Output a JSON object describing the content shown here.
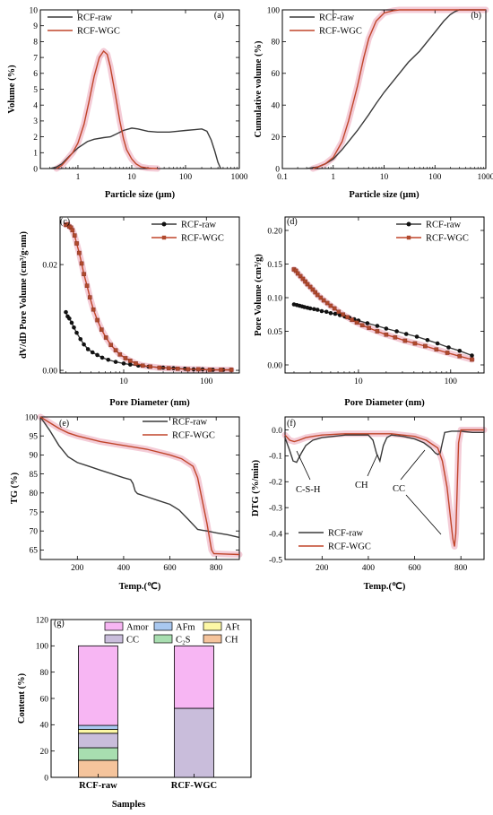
{
  "colors": {
    "raw": "#3a3a3a",
    "wgc": "#c0452a",
    "wgc_marker": "#b04a2e",
    "shade": "#f3c6d3",
    "axis": "#000000"
  },
  "panel_labels": {
    "a": "(a)",
    "b": "(b)",
    "c": "(c)",
    "d": "(d)",
    "e": "(e)",
    "f": "(f)",
    "g": "(g)"
  },
  "annotations": {
    "csh": "C-S-H",
    "ch": "CH",
    "cc": "CC"
  },
  "chart_data": [
    {
      "id": "a",
      "type": "line",
      "xscale": "log",
      "xlabel": "Particle size (μm)",
      "ylabel": "Volume (%)",
      "xlim": [
        0.2,
        1000
      ],
      "ylim": [
        0,
        10
      ],
      "xticks": [
        1,
        10,
        100,
        1000
      ],
      "yticks": [
        0,
        1,
        2,
        3,
        4,
        5,
        6,
        7,
        8,
        9,
        10
      ],
      "legend": "top-left",
      "series": [
        {
          "name": "RCF-raw",
          "x": [
            0.3,
            0.4,
            0.5,
            0.7,
            1,
            1.5,
            2,
            3,
            4,
            5,
            7,
            10,
            13,
            20,
            30,
            50,
            70,
            100,
            150,
            200,
            250,
            300,
            350,
            400,
            450
          ],
          "y": [
            0,
            0.1,
            0.3,
            0.8,
            1.3,
            1.7,
            1.85,
            1.95,
            2.0,
            2.15,
            2.4,
            2.55,
            2.5,
            2.35,
            2.3,
            2.3,
            2.35,
            2.4,
            2.45,
            2.5,
            2.35,
            1.8,
            1.1,
            0.4,
            0
          ]
        },
        {
          "name": "RCF-WGC",
          "x": [
            0.4,
            0.5,
            0.6,
            0.8,
            1,
            1.3,
            1.6,
            2,
            2.5,
            3,
            3.5,
            4,
            5,
            6,
            7,
            8,
            10,
            12,
            15,
            20,
            25,
            30
          ],
          "y": [
            0,
            0.2,
            0.5,
            1.0,
            1.6,
            2.8,
            4.2,
            5.8,
            7.0,
            7.4,
            7.2,
            6.4,
            4.6,
            3.0,
            1.9,
            1.2,
            0.6,
            0.3,
            0.1,
            0.03,
            0.01,
            0
          ]
        }
      ]
    },
    {
      "id": "b",
      "type": "line",
      "xscale": "log",
      "xlabel": "Particle size (μm)",
      "ylabel": "Cumulative volume (%)",
      "xlim": [
        0.1,
        1000
      ],
      "ylim": [
        0,
        100
      ],
      "xticks": [
        0.1,
        1,
        10,
        100,
        1000
      ],
      "yticks": [
        0,
        20,
        40,
        60,
        80,
        100
      ],
      "legend": "top-left",
      "series": [
        {
          "name": "RCF-raw",
          "x": [
            0.3,
            0.5,
            0.7,
            1,
            1.5,
            2,
            3,
            5,
            7,
            10,
            20,
            30,
            50,
            100,
            150,
            200,
            250,
            300,
            400,
            500,
            1000
          ],
          "y": [
            0,
            1,
            3,
            6,
            12,
            17,
            24,
            34,
            41,
            48,
            60,
            67,
            74,
            86,
            93,
            97,
            99,
            100,
            100,
            100,
            100
          ]
        },
        {
          "name": "RCF-WGC",
          "x": [
            0.4,
            0.5,
            0.7,
            1,
            1.5,
            2,
            3,
            4,
            5,
            7,
            10,
            15,
            20,
            30,
            50,
            100,
            1000
          ],
          "y": [
            0,
            1,
            3,
            7,
            17,
            30,
            52,
            70,
            82,
            93,
            98,
            99.5,
            100,
            100,
            100,
            100,
            100
          ]
        }
      ]
    },
    {
      "id": "c",
      "type": "line",
      "xscale": "log",
      "xlabel": "Pore Diameter (nm)",
      "ylabel": "dV/dD Pore Volume (cm³/g·nm)",
      "xlim": [
        1.7,
        250
      ],
      "ylim": [
        -0.0005,
        0.029
      ],
      "xticks": [
        10,
        100
      ],
      "yticks": [
        0.0,
        0.02
      ],
      "ytick_labels": [
        "0.00",
        "0.02"
      ],
      "legend": "top-right",
      "series": [
        {
          "name": "RCF-raw",
          "marker": "circle",
          "x": [
            2.0,
            2.1,
            2.2,
            2.35,
            2.5,
            2.7,
            3.0,
            3.3,
            3.7,
            4.2,
            4.8,
            5.5,
            6.5,
            8,
            10,
            12,
            15,
            20,
            30,
            40,
            55,
            70,
            90,
            120,
            160,
            200
          ],
          "y": [
            0.011,
            0.0102,
            0.0098,
            0.009,
            0.0081,
            0.0071,
            0.0059,
            0.0049,
            0.004,
            0.0034,
            0.0029,
            0.0024,
            0.002,
            0.0016,
            0.0013,
            0.0011,
            0.0009,
            0.0007,
            0.0005,
            0.0004,
            0.0003,
            0.0002,
            0.0002,
            0.0001,
            0.0001,
            0.0001
          ]
        },
        {
          "name": "RCF-WGC",
          "marker": "square",
          "x": [
            2.0,
            2.1,
            2.2,
            2.3,
            2.4,
            2.55,
            2.7,
            2.9,
            3.1,
            3.3,
            3.6,
            3.9,
            4.3,
            4.8,
            5.4,
            6.1,
            7,
            8,
            9,
            10.5,
            12,
            14,
            17,
            21,
            27,
            35,
            45,
            60,
            80,
            110,
            150,
            200
          ],
          "y": [
            0.0275,
            0.0276,
            0.0272,
            0.027,
            0.0265,
            0.0255,
            0.024,
            0.0222,
            0.0202,
            0.0182,
            0.016,
            0.0138,
            0.0115,
            0.0095,
            0.0077,
            0.0062,
            0.0048,
            0.0038,
            0.003,
            0.0023,
            0.0018,
            0.0013,
            0.0009,
            0.0007,
            0.0005,
            0.0004,
            0.0003,
            0.0002,
            0.0002,
            0.0001,
            0.0001,
            0.0001
          ]
        }
      ]
    },
    {
      "id": "d",
      "type": "line",
      "xscale": "log",
      "xlabel": "Pore Diameter (nm)",
      "ylabel": "Pore Volume (cm³/g)",
      "xlim": [
        1.6,
        230
      ],
      "ylim": [
        -0.012,
        0.22
      ],
      "xticks": [
        10,
        100
      ],
      "yticks": [
        0.0,
        0.05,
        0.1,
        0.15,
        0.2
      ],
      "ytick_labels": [
        "0.00",
        "0.05",
        "0.10",
        "0.15",
        "0.20"
      ],
      "legend": "top-right",
      "series": [
        {
          "name": "RCF-raw",
          "marker": "circle",
          "x": [
            2.0,
            2.15,
            2.3,
            2.45,
            2.6,
            2.8,
            3.0,
            3.3,
            3.6,
            4.0,
            4.5,
            5.0,
            5.6,
            6.3,
            7.1,
            8,
            9,
            10,
            12.5,
            16,
            20,
            26,
            33,
            43,
            56,
            72,
            95,
            125,
            170
          ],
          "y": [
            0.09,
            0.089,
            0.088,
            0.087,
            0.086,
            0.085,
            0.084,
            0.083,
            0.082,
            0.08,
            0.079,
            0.077,
            0.076,
            0.074,
            0.072,
            0.07,
            0.068,
            0.066,
            0.062,
            0.058,
            0.054,
            0.05,
            0.046,
            0.042,
            0.037,
            0.032,
            0.026,
            0.021,
            0.014
          ]
        },
        {
          "name": "RCF-WGC",
          "marker": "square",
          "x": [
            2.0,
            2.1,
            2.2,
            2.35,
            2.5,
            2.65,
            2.8,
            3.0,
            3.2,
            3.4,
            3.6,
            3.9,
            4.2,
            4.6,
            5.0,
            5.5,
            6.1,
            6.8,
            7.6,
            8.5,
            9.6,
            11,
            13,
            16,
            20,
            25,
            32,
            41,
            53,
            70,
            92,
            125,
            170
          ],
          "y": [
            0.142,
            0.14,
            0.136,
            0.132,
            0.128,
            0.124,
            0.12,
            0.116,
            0.112,
            0.108,
            0.104,
            0.1,
            0.096,
            0.092,
            0.088,
            0.084,
            0.079,
            0.075,
            0.071,
            0.067,
            0.063,
            0.059,
            0.055,
            0.05,
            0.045,
            0.041,
            0.036,
            0.032,
            0.028,
            0.023,
            0.018,
            0.013,
            0.008
          ]
        }
      ]
    },
    {
      "id": "e",
      "type": "line",
      "xlabel": "Temp.(℃)",
      "ylabel": "TG (%)",
      "xlim": [
        40,
        900
      ],
      "ylim": [
        62.5,
        100
      ],
      "xticks": [
        200,
        400,
        600,
        800
      ],
      "yticks": [
        65,
        70,
        75,
        80,
        85,
        90,
        95,
        100
      ],
      "legend": "top-right",
      "series": [
        {
          "name": "RCF-raw",
          "x": [
            40,
            80,
            120,
            160,
            200,
            250,
            300,
            350,
            400,
            430,
            440,
            450,
            460,
            500,
            550,
            600,
            640,
            680,
            720,
            740,
            760,
            800,
            850,
            900
          ],
          "y": [
            100,
            96.5,
            92.5,
            89.5,
            88,
            87,
            86,
            85,
            84,
            83.5,
            82.5,
            80.5,
            79.8,
            79,
            78,
            77,
            75.5,
            73,
            70.4,
            70.2,
            70,
            69.5,
            69,
            68.3
          ]
        },
        {
          "name": "RCF-WGC",
          "x": [
            40,
            80,
            120,
            160,
            200,
            300,
            400,
            500,
            600,
            650,
            700,
            720,
            740,
            760,
            780,
            790,
            800,
            850,
            900
          ],
          "y": [
            100,
            98.5,
            97,
            95.8,
            95,
            93.5,
            92.5,
            91.5,
            90,
            89,
            87,
            84,
            78,
            72,
            65,
            64,
            64,
            63.9,
            63.8
          ]
        }
      ]
    },
    {
      "id": "f",
      "type": "line",
      "xlabel": "Temp.(℃)",
      "ylabel": "DTG (%/min)",
      "xlim": [
        40,
        900
      ],
      "ylim": [
        -0.5,
        0.05
      ],
      "xticks": [
        200,
        400,
        600,
        800
      ],
      "yticks": [
        0.0,
        -0.1,
        -0.2,
        -0.3,
        -0.4,
        -0.5
      ],
      "ytick_labels": [
        "0.0",
        "-0.1",
        "-0.2",
        "-0.3",
        "-0.4",
        "-0.5"
      ],
      "legend": "bottom-left",
      "series": [
        {
          "name": "RCF-raw",
          "x": [
            40,
            60,
            75,
            90,
            110,
            130,
            160,
            200,
            300,
            400,
            420,
            435,
            450,
            465,
            480,
            500,
            550,
            600,
            640,
            670,
            690,
            700,
            710,
            720,
            730,
            760,
            800,
            850,
            900
          ],
          "y": [
            -0.03,
            -0.08,
            -0.12,
            -0.125,
            -0.09,
            -0.06,
            -0.04,
            -0.03,
            -0.02,
            -0.02,
            -0.04,
            -0.09,
            -0.12,
            -0.06,
            -0.03,
            -0.02,
            -0.025,
            -0.035,
            -0.05,
            -0.07,
            -0.09,
            -0.095,
            -0.09,
            -0.05,
            -0.01,
            -0.005,
            -0.005,
            -0.01,
            -0.01
          ]
        },
        {
          "name": "RCF-WGC",
          "x": [
            40,
            60,
            80,
            100,
            130,
            160,
            200,
            300,
            400,
            500,
            600,
            650,
            700,
            720,
            740,
            755,
            765,
            772,
            778,
            785,
            790,
            800,
            820,
            900
          ],
          "y": [
            -0.02,
            -0.04,
            -0.045,
            -0.04,
            -0.03,
            -0.025,
            -0.02,
            -0.015,
            -0.015,
            -0.015,
            -0.025,
            -0.04,
            -0.07,
            -0.12,
            -0.22,
            -0.34,
            -0.42,
            -0.45,
            -0.4,
            -0.2,
            -0.05,
            0.0,
            0.0,
            0.0
          ]
        }
      ]
    },
    {
      "id": "g",
      "type": "bar",
      "stacked": true,
      "xlabel": "Samples",
      "ylabel": "Content (%)",
      "categories": [
        "RCF-raw",
        "RCF-WGC"
      ],
      "ylim": [
        0,
        120
      ],
      "yticks": [
        0,
        20,
        40,
        60,
        80,
        100,
        120
      ],
      "legend": "top",
      "legend_order": [
        "Amor",
        "AFm",
        "AFt",
        "CC",
        "C₂S",
        "CH"
      ],
      "series": [
        {
          "name": "CH",
          "color": "#f5c49c",
          "values": [
            13,
            0
          ]
        },
        {
          "name": "C₂S",
          "color": "#a8deb0",
          "values": [
            9.5,
            0
          ]
        },
        {
          "name": "CC",
          "color": "#c9bddb",
          "values": [
            11,
            52.5
          ]
        },
        {
          "name": "AFt",
          "color": "#fdf8a6",
          "values": [
            3,
            0
          ]
        },
        {
          "name": "AFm",
          "color": "#a9c8f0",
          "values": [
            3,
            0
          ]
        },
        {
          "name": "Amor",
          "color": "#f7b6f3",
          "values": [
            60.5,
            47.5
          ]
        }
      ]
    }
  ]
}
